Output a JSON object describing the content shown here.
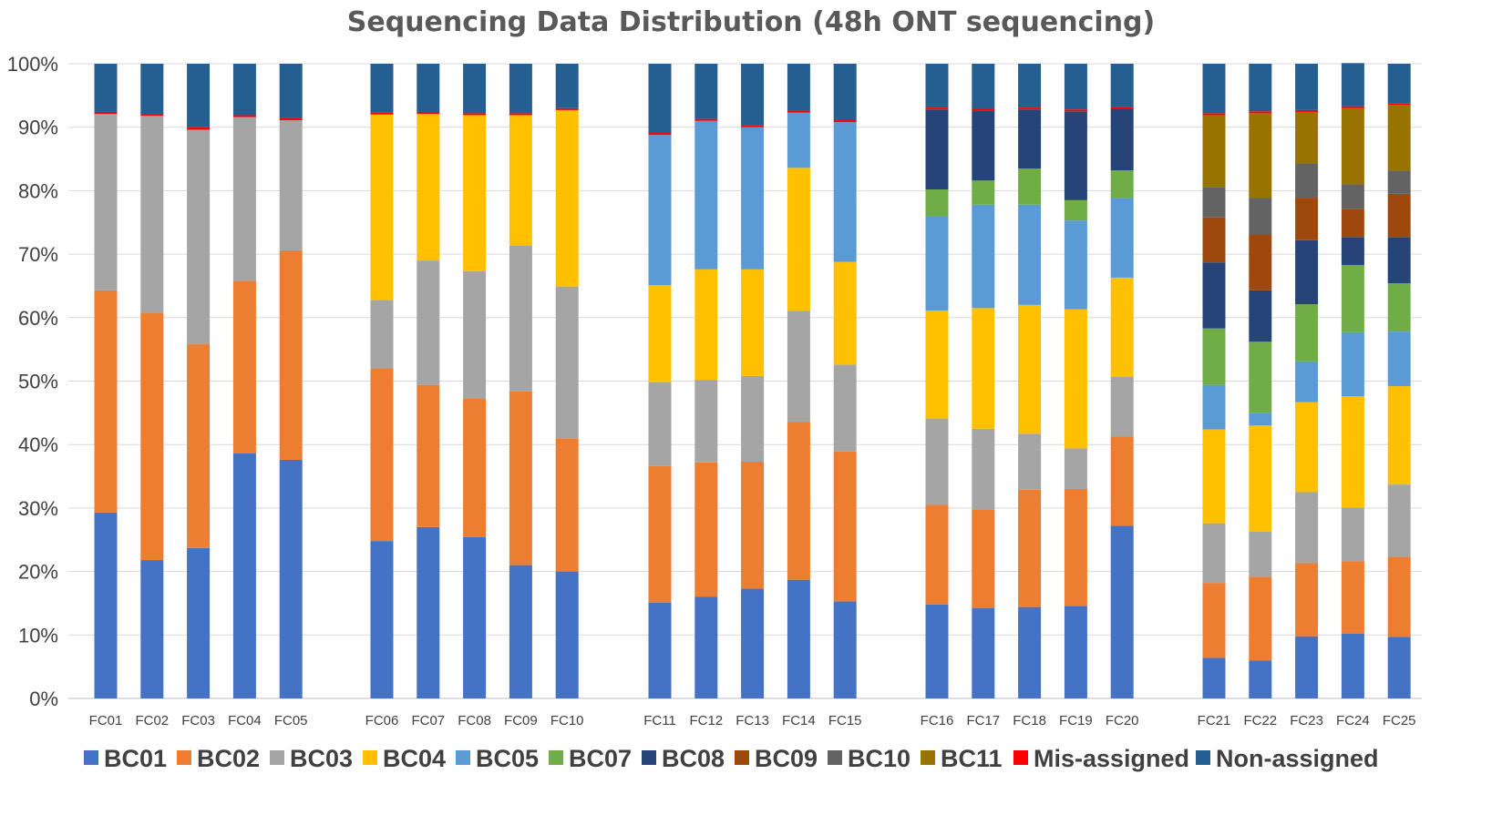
{
  "chart_data": {
    "type": "bar",
    "stacked": true,
    "percent": true,
    "title": "Sequencing Data Distribution (48h ONT sequencing)",
    "xlabel": "",
    "ylabel": "",
    "ylim": [
      0,
      100
    ],
    "yticks": [
      "0%",
      "10%",
      "20%",
      "30%",
      "40%",
      "50%",
      "60%",
      "70%",
      "80%",
      "90%",
      "100%"
    ],
    "grid": true,
    "legend": "bottom",
    "colors": {
      "BC01": "#4472C4",
      "BC02": "#ED7D31",
      "BC03": "#A5A5A5",
      "BC04": "#FFC000",
      "BC05": "#5B9BD5",
      "BC07": "#70AD47",
      "BC08": "#264478",
      "BC09": "#9E480E",
      "BC10": "#636363",
      "BC11": "#997300",
      "Mis-assigned": "#FF0000",
      "Non-assigned": "#255E91"
    },
    "categories": [
      "FC01",
      "FC02",
      "FC03",
      "FC04",
      "FC05",
      "FC06",
      "FC07",
      "FC08",
      "FC09",
      "FC10",
      "FC11",
      "FC12",
      "FC13",
      "FC14",
      "FC15",
      "FC16",
      "FC17",
      "FC18",
      "FC19",
      "FC20",
      "FC21",
      "FC22",
      "FC23",
      "FC24",
      "FC25"
    ],
    "groups": [
      [
        0,
        1,
        2,
        3,
        4
      ],
      [
        5,
        6,
        7,
        8,
        9
      ],
      [
        10,
        11,
        12,
        13,
        14
      ],
      [
        15,
        16,
        17,
        18,
        19
      ],
      [
        20,
        21,
        22,
        23,
        24
      ]
    ],
    "series": [
      {
        "name": "BC01",
        "values": [
          29.3,
          21.8,
          23.7,
          38.6,
          37.6,
          24.8,
          27.0,
          25.4,
          21.0,
          20.0,
          15.1,
          16.0,
          17.3,
          18.7,
          15.3,
          14.8,
          14.2,
          14.4,
          14.6,
          27.2,
          6.4,
          6.0,
          9.8,
          10.2,
          9.7
        ]
      },
      {
        "name": "BC02",
        "values": [
          35.0,
          39.0,
          32.1,
          27.2,
          33.0,
          27.2,
          22.4,
          21.8,
          27.4,
          21.0,
          21.5,
          21.2,
          20.0,
          24.9,
          23.6,
          15.7,
          15.6,
          18.5,
          18.4,
          14.1,
          11.8,
          13.2,
          11.5,
          11.4,
          12.6
        ]
      },
      {
        "name": "BC03",
        "values": [
          27.8,
          31.0,
          33.8,
          25.8,
          20.5,
          10.8,
          19.6,
          20.1,
          22.9,
          23.9,
          13.2,
          13.0,
          13.5,
          17.5,
          13.7,
          13.6,
          12.7,
          8.8,
          6.4,
          9.4,
          9.4,
          7.1,
          11.2,
          8.5,
          11.4
        ]
      },
      {
        "name": "BC04",
        "values": [
          0,
          0,
          0,
          0,
          0,
          29.2,
          23.1,
          24.6,
          20.6,
          27.8,
          15.3,
          17.4,
          16.8,
          22.5,
          16.2,
          17.0,
          19.0,
          20.3,
          21.9,
          15.6,
          14.8,
          16.7,
          14.2,
          17.5,
          15.5
        ]
      },
      {
        "name": "BC05",
        "values": [
          0,
          0,
          0,
          0,
          0,
          0,
          0,
          0,
          0,
          0,
          23.7,
          23.4,
          22.4,
          8.7,
          22.0,
          14.8,
          16.3,
          15.8,
          14.0,
          12.6,
          7.0,
          2.0,
          6.4,
          10.1,
          8.6
        ]
      },
      {
        "name": "BC07",
        "values": [
          0,
          0,
          0,
          0,
          0,
          0,
          0,
          0,
          0,
          0,
          0,
          0,
          0,
          0,
          0,
          4.3,
          3.8,
          5.7,
          3.2,
          4.3,
          8.9,
          11.2,
          9.0,
          10.6,
          7.6
        ]
      },
      {
        "name": "BC08",
        "values": [
          0,
          0,
          0,
          0,
          0,
          0,
          0,
          0,
          0,
          0,
          0,
          0,
          0,
          0,
          0,
          12.6,
          11.0,
          9.3,
          14.0,
          9.7,
          10.4,
          8.1,
          10.1,
          4.4,
          7.3
        ]
      },
      {
        "name": "BC09",
        "values": [
          0,
          0,
          0,
          0,
          0,
          0,
          0,
          0,
          0,
          0,
          0,
          0,
          0,
          0,
          0,
          0,
          0,
          0,
          0,
          0,
          7.1,
          8.8,
          6.7,
          4.4,
          6.8
        ]
      },
      {
        "name": "BC10",
        "values": [
          0,
          0,
          0,
          0,
          0,
          0,
          0,
          0,
          0,
          0,
          0,
          0,
          0,
          0,
          0,
          0,
          0,
          0,
          0,
          0,
          4.8,
          5.8,
          5.4,
          3.9,
          3.7
        ]
      },
      {
        "name": "BC11",
        "values": [
          0,
          0,
          0,
          0,
          0,
          0,
          0,
          0,
          0,
          0,
          0,
          0,
          0,
          0,
          0,
          0,
          0,
          0,
          0,
          0,
          11.3,
          13.3,
          8.1,
          12.0,
          10.3
        ]
      },
      {
        "name": "Mis-assigned",
        "values": [
          0.3,
          0.3,
          0.4,
          0.3,
          0.3,
          0.3,
          0.3,
          0.3,
          0.3,
          0.3,
          0.3,
          0.3,
          0.3,
          0.3,
          0.3,
          0.3,
          0.3,
          0.3,
          0.3,
          0.3,
          0.3,
          0.3,
          0.3,
          0.3,
          0.3
        ]
      },
      {
        "name": "Non-assigned",
        "values": [
          7.6,
          7.9,
          10.0,
          8.1,
          8.6,
          7.7,
          7.6,
          7.8,
          7.8,
          7.0,
          10.9,
          8.7,
          9.7,
          7.4,
          8.9,
          6.9,
          7.1,
          6.9,
          7.2,
          6.8,
          7.8,
          7.5,
          7.3,
          6.8,
          6.2
        ]
      }
    ]
  }
}
